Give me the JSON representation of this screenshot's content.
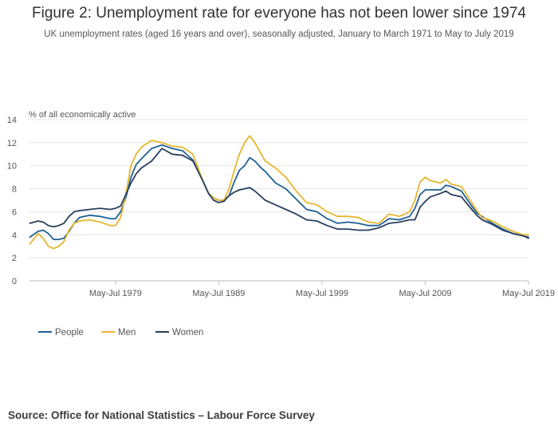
{
  "header": {
    "title": "Figure 2: Unemployment rate for everyone has not been lower since 1974",
    "subtitle": "UK unemployment rates (aged 16 years and over), seasonally adjusted, January to March 1971 to May to July 2019"
  },
  "footer": {
    "source": "Source: Office for National Statistics – Labour Force Survey"
  },
  "colors": {
    "people": "#206095",
    "men": "#e6b62e",
    "women": "#27405e",
    "grid": "#e4e4e4",
    "axis": "#bdbdbd",
    "text": "#555555"
  },
  "chart_data": {
    "type": "line",
    "title": "Figure 2: Unemployment rate for everyone has not been lower since 1974",
    "ylabel": "% of all economically active",
    "xlabel": "",
    "ylim": [
      0,
      14
    ],
    "yticks": [
      0,
      2,
      4,
      6,
      8,
      10,
      12,
      14
    ],
    "xlim": [
      1971.17,
      2019.5
    ],
    "xticks": [
      {
        "label": "May-Jul 1979",
        "x": 1979.5
      },
      {
        "label": "May-Jul 1989",
        "x": 1989.5
      },
      {
        "label": "May-Jul 1999",
        "x": 1999.5
      },
      {
        "label": "May-Jul 2009",
        "x": 2009.5
      },
      {
        "label": "May-Jul 2019",
        "x": 2019.5
      }
    ],
    "grid": true,
    "legend_position": "bottom-left",
    "x": [
      1971.2,
      1972.0,
      1972.5,
      1973.0,
      1973.5,
      1974.0,
      1974.5,
      1975.0,
      1975.5,
      1976.0,
      1977.0,
      1978.0,
      1979.0,
      1979.5,
      1980.0,
      1980.5,
      1981.0,
      1981.5,
      1982.0,
      1983.0,
      1984.0,
      1985.0,
      1986.0,
      1987.0,
      1988.0,
      1988.5,
      1989.0,
      1989.5,
      1990.0,
      1990.5,
      1991.0,
      1991.5,
      1992.0,
      1992.5,
      1993.0,
      1993.5,
      1994.0,
      1995.0,
      1996.0,
      1997.0,
      1998.0,
      1999.0,
      2000.0,
      2001.0,
      2002.0,
      2003.0,
      2004.0,
      2005.0,
      2006.0,
      2007.0,
      2008.0,
      2008.5,
      2009.0,
      2009.5,
      2010.0,
      2011.0,
      2011.5,
      2012.0,
      2013.0,
      2014.0,
      2014.5,
      2015.0,
      2016.0,
      2017.0,
      2018.0,
      2019.0,
      2019.5
    ],
    "series": [
      {
        "name": "People",
        "color_key": "people",
        "values": [
          3.8,
          4.3,
          4.4,
          4.1,
          3.6,
          3.6,
          3.7,
          4.3,
          5.0,
          5.5,
          5.7,
          5.6,
          5.4,
          5.4,
          6.0,
          7.2,
          9.0,
          10.1,
          10.6,
          11.5,
          11.8,
          11.5,
          11.3,
          10.5,
          8.6,
          7.6,
          7.2,
          7.0,
          7.0,
          7.4,
          8.6,
          9.6,
          10.0,
          10.7,
          10.4,
          9.9,
          9.5,
          8.5,
          8.0,
          7.1,
          6.2,
          6.0,
          5.4,
          5.0,
          5.1,
          5.0,
          4.8,
          4.8,
          5.4,
          5.3,
          5.6,
          6.3,
          7.5,
          7.9,
          7.9,
          7.9,
          8.3,
          8.2,
          7.8,
          6.5,
          5.9,
          5.6,
          5.0,
          4.5,
          4.1,
          3.9,
          3.8
        ]
      },
      {
        "name": "Men",
        "color_key": "men",
        "values": [
          3.2,
          4.1,
          3.7,
          3.0,
          2.8,
          3.0,
          3.4,
          4.4,
          5.0,
          5.2,
          5.3,
          5.1,
          4.8,
          4.8,
          5.5,
          7.5,
          10.0,
          11.0,
          11.6,
          12.2,
          12.0,
          11.7,
          11.6,
          11.0,
          8.6,
          7.6,
          7.2,
          7.0,
          7.0,
          8.0,
          9.6,
          11.0,
          12.0,
          12.6,
          12.0,
          11.2,
          10.4,
          9.8,
          9.0,
          7.8,
          6.8,
          6.6,
          6.0,
          5.6,
          5.6,
          5.5,
          5.1,
          5.0,
          5.8,
          5.6,
          6.0,
          7.0,
          8.6,
          9.0,
          8.7,
          8.5,
          8.8,
          8.4,
          8.2,
          6.8,
          6.1,
          5.5,
          5.2,
          4.7,
          4.3,
          4.0,
          4.0
        ]
      },
      {
        "name": "Women",
        "color_key": "women",
        "values": [
          5.0,
          5.2,
          5.1,
          4.8,
          4.7,
          4.8,
          5.0,
          5.6,
          6.0,
          6.1,
          6.2,
          6.3,
          6.2,
          6.3,
          6.5,
          7.5,
          8.5,
          9.3,
          9.8,
          10.4,
          11.5,
          11.0,
          10.9,
          10.4,
          8.6,
          7.6,
          7.0,
          6.8,
          6.9,
          7.4,
          7.7,
          7.9,
          8.0,
          8.1,
          7.8,
          7.4,
          7.0,
          6.6,
          6.2,
          5.8,
          5.3,
          5.2,
          4.8,
          4.5,
          4.5,
          4.4,
          4.4,
          4.6,
          5.0,
          5.1,
          5.3,
          5.3,
          6.4,
          6.9,
          7.3,
          7.6,
          7.8,
          7.5,
          7.3,
          6.2,
          5.7,
          5.3,
          4.9,
          4.4,
          4.1,
          3.9,
          3.7
        ]
      }
    ]
  }
}
